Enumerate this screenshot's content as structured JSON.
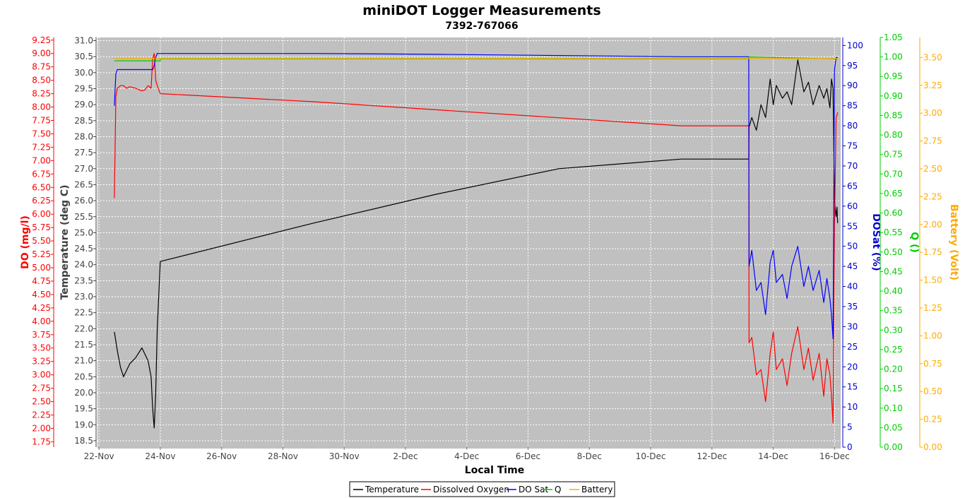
{
  "chart_data": {
    "type": "line",
    "title": "miniDOT Logger Measurements",
    "subtitle": "7392-767066",
    "xlabel": "Local Time",
    "x_ticks": [
      "22-Nov",
      "24-Nov",
      "26-Nov",
      "28-Nov",
      "30-Nov",
      "2-Dec",
      "4-Dec",
      "6-Dec",
      "8-Dec",
      "10-Dec",
      "12-Dec",
      "14-Dec",
      "16-Dec"
    ],
    "xlim_days": [
      -0.05,
      24.2
    ],
    "grid": true,
    "background": "#c0c0c0",
    "axes": {
      "do": {
        "label": "DO (mg/l)",
        "color": "#ff0000",
        "range": [
          1.65,
          9.3
        ],
        "ticks": [
          "1.75",
          "2.00",
          "2.25",
          "2.50",
          "2.75",
          "3.00",
          "3.25",
          "3.50",
          "3.75",
          "4.00",
          "4.25",
          "4.50",
          "4.75",
          "5.00",
          "5.25",
          "5.50",
          "5.75",
          "6.00",
          "6.25",
          "6.50",
          "6.75",
          "7.00",
          "7.25",
          "7.50",
          "7.75",
          "8.00",
          "8.25",
          "8.50",
          "8.75",
          "9.00",
          "9.25"
        ]
      },
      "temp": {
        "label": "Temperature (deg C)",
        "color": "#404040",
        "range": [
          18.3,
          31.1
        ],
        "ticks": [
          "18.5",
          "19.0",
          "19.5",
          "20.0",
          "20.5",
          "21.0",
          "21.5",
          "22.0",
          "22.5",
          "23.0",
          "23.5",
          "24.0",
          "24.5",
          "25.0",
          "25.5",
          "26.0",
          "26.5",
          "27.0",
          "27.5",
          "28.0",
          "28.5",
          "29.0",
          "29.5",
          "30.0",
          "30.5",
          "31.0"
        ]
      },
      "dosat": {
        "label": "DOSat (%)",
        "color": "#0000cc",
        "range": [
          0,
          102
        ],
        "ticks": [
          "0",
          "5",
          "10",
          "15",
          "20",
          "25",
          "30",
          "35",
          "40",
          "45",
          "50",
          "55",
          "60",
          "65",
          "70",
          "75",
          "80",
          "85",
          "90",
          "95",
          "100"
        ]
      },
      "q": {
        "label": "Q ()",
        "color": "#00cc00",
        "range": [
          0,
          1.05
        ],
        "ticks": [
          "0.00",
          "0.05",
          "0.10",
          "0.15",
          "0.20",
          "0.25",
          "0.30",
          "0.35",
          "0.40",
          "0.45",
          "0.50",
          "0.55",
          "0.60",
          "0.65",
          "0.70",
          "0.75",
          "0.80",
          "0.85",
          "0.90",
          "0.95",
          "1.00",
          "1.05"
        ]
      },
      "battery": {
        "label": "Battery (Volt)",
        "color": "#ffaa00",
        "range": [
          0,
          3.68
        ],
        "ticks": [
          "0.00",
          "0.25",
          "0.50",
          "0.75",
          "1.00",
          "1.25",
          "1.50",
          "1.75",
          "2.00",
          "2.25",
          "2.50",
          "2.75",
          "3.00",
          "3.25",
          "3.50"
        ]
      }
    },
    "series": [
      {
        "name": "Temperature",
        "color": "#000000",
        "axis": "temp",
        "x": [
          0.5,
          0.6,
          0.7,
          0.8,
          0.9,
          1.0,
          1.2,
          1.4,
          1.6,
          1.7,
          1.75,
          1.8,
          1.85,
          1.9,
          2.0,
          2.0,
          7.0,
          11.0,
          15.0,
          19.0,
          21.2,
          21.21,
          21.3,
          21.45,
          21.6,
          21.75,
          21.9,
          22.0,
          22.1,
          22.3,
          22.45,
          22.6,
          22.8,
          23.0,
          23.15,
          23.3,
          23.5,
          23.65,
          23.75,
          23.85,
          23.9,
          23.95,
          24.0,
          24.05,
          24.08,
          24.1
        ],
        "y": [
          21.9,
          21.3,
          20.8,
          20.5,
          20.7,
          20.9,
          21.1,
          21.4,
          21.0,
          20.5,
          19.5,
          18.9,
          20.0,
          22.0,
          24.1,
          24.1,
          25.3,
          26.2,
          27.0,
          27.3,
          27.3,
          28.3,
          28.6,
          28.2,
          29.0,
          28.6,
          29.8,
          29.0,
          29.6,
          29.2,
          29.4,
          29.0,
          30.4,
          29.4,
          29.7,
          29.0,
          29.6,
          29.2,
          29.5,
          28.9,
          29.8,
          29.5,
          26.0,
          25.5,
          25.8,
          25.3
        ]
      },
      {
        "name": "Dissolved Oxygen",
        "color": "#ff0000",
        "axis": "do",
        "x": [
          0.5,
          0.55,
          0.6,
          0.7,
          0.8,
          0.9,
          1.0,
          1.2,
          1.4,
          1.5,
          1.6,
          1.7,
          1.75,
          1.8,
          1.85,
          1.9,
          2.0,
          2.0,
          7.0,
          11.0,
          15.0,
          19.0,
          21.2,
          21.21,
          21.3,
          21.45,
          21.6,
          21.75,
          21.9,
          22.0,
          22.1,
          22.3,
          22.45,
          22.6,
          22.8,
          23.0,
          23.15,
          23.3,
          23.5,
          23.65,
          23.75,
          23.85,
          23.9,
          23.95,
          24.0,
          24.05,
          24.08,
          24.1
        ],
        "y": [
          6.3,
          8.2,
          8.35,
          8.4,
          8.4,
          8.35,
          8.38,
          8.35,
          8.3,
          8.32,
          8.4,
          8.35,
          8.9,
          9.0,
          8.5,
          8.4,
          8.25,
          8.25,
          8.1,
          7.95,
          7.8,
          7.65,
          7.65,
          3.6,
          3.7,
          3.0,
          3.1,
          2.5,
          3.4,
          3.8,
          3.1,
          3.3,
          2.8,
          3.4,
          3.9,
          3.1,
          3.5,
          2.9,
          3.4,
          2.6,
          3.3,
          3.0,
          2.6,
          2.1,
          5.8,
          7.8,
          7.85,
          7.9
        ]
      },
      {
        "name": "DO Sat",
        "color": "#0000ff",
        "axis": "dosat",
        "x": [
          0.5,
          0.55,
          0.6,
          0.7,
          0.8,
          0.9,
          1.0,
          1.2,
          1.4,
          1.6,
          1.7,
          1.75,
          1.8,
          1.85,
          1.9,
          2.0,
          2.0,
          7.0,
          11.0,
          15.0,
          19.0,
          21.2,
          21.21,
          21.3,
          21.45,
          21.6,
          21.75,
          21.9,
          22.0,
          22.1,
          22.3,
          22.45,
          22.6,
          22.8,
          23.0,
          23.15,
          23.3,
          23.5,
          23.65,
          23.75,
          23.85,
          23.9,
          23.95,
          24.0,
          24.05,
          24.08,
          24.1
        ],
        "y": [
          85,
          93,
          94,
          94,
          94,
          94,
          94,
          94,
          94,
          94,
          94,
          94,
          95,
          97,
          98,
          98,
          98,
          98,
          97.8,
          97.5,
          97.2,
          97.2,
          45,
          49,
          39,
          41,
          33,
          46,
          49,
          41,
          43,
          37,
          45,
          50,
          40,
          45,
          39,
          44,
          36,
          42,
          37,
          33,
          27,
          94,
          97,
          97,
          97
        ]
      },
      {
        "name": "Q",
        "color": "#00cc00",
        "axis": "q",
        "x": [
          0.5,
          2.0,
          2.0,
          21.2,
          21.21,
          24.1
        ],
        "y": [
          0.99,
          0.99,
          0.995,
          0.995,
          1.0,
          0.995
        ]
      },
      {
        "name": "Battery",
        "color": "#ffaa00",
        "axis": "battery",
        "x": [
          0.5,
          24.1
        ],
        "y": [
          3.49,
          3.49
        ]
      }
    ]
  }
}
